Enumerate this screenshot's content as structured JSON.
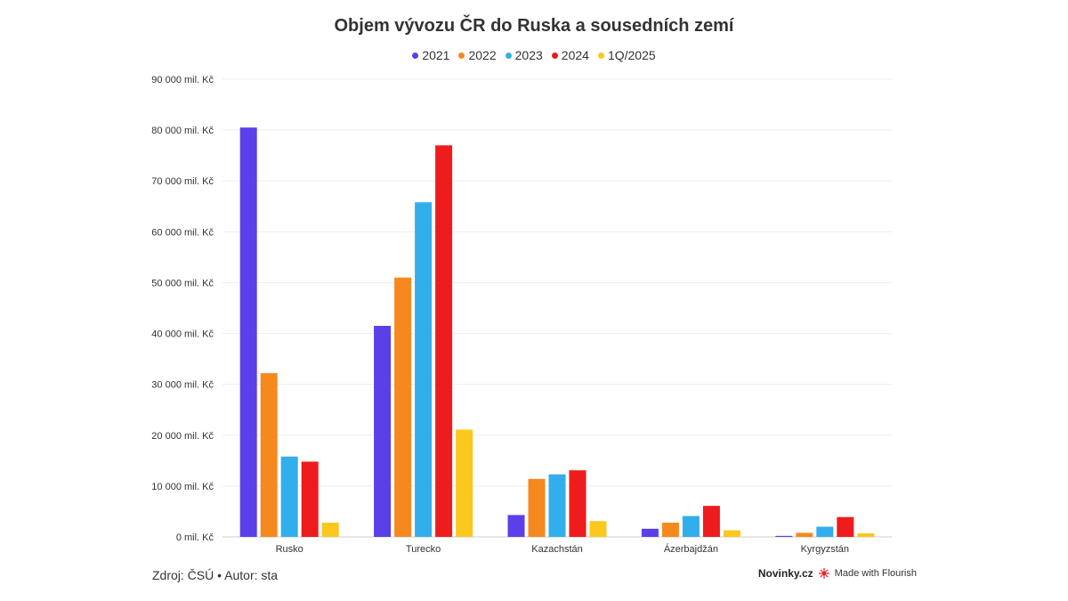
{
  "chart_data": {
    "type": "bar",
    "title": "Objem vývozu ČR do Ruska a sousedních zemí",
    "categories": [
      "Rusko",
      "Turecko",
      "Kazachstán",
      "Ázerbajdžán",
      "Kyrgyzstán"
    ],
    "series": [
      {
        "name": "2021",
        "color": "#5b3fe8",
        "values": [
          80500,
          41500,
          4300,
          1600,
          200
        ]
      },
      {
        "name": "2022",
        "color": "#f5891e",
        "values": [
          32200,
          51000,
          11400,
          2800,
          800
        ]
      },
      {
        "name": "2023",
        "color": "#33aeec",
        "values": [
          15800,
          65800,
          12300,
          4100,
          2000
        ]
      },
      {
        "name": "2024",
        "color": "#ee1c1c",
        "values": [
          14800,
          77000,
          13100,
          6100,
          3900
        ]
      },
      {
        "name": "1Q/2025",
        "color": "#fcc81e",
        "values": [
          2800,
          21100,
          3100,
          1300,
          700
        ]
      }
    ],
    "ylim": [
      0,
      90000
    ],
    "yticks": [
      {
        "value": 0,
        "label": "0 mil. Kč"
      },
      {
        "value": 10000,
        "label": "10 000 mil. Kč"
      },
      {
        "value": 20000,
        "label": "20 000 mil. Kč"
      },
      {
        "value": 30000,
        "label": "30 000 mil. Kč"
      },
      {
        "value": 40000,
        "label": "40 000 mil. Kč"
      },
      {
        "value": 50000,
        "label": "50 000 mil. Kč"
      },
      {
        "value": 60000,
        "label": "60 000 mil. Kč"
      },
      {
        "value": 70000,
        "label": "70 000 mil. Kč"
      },
      {
        "value": 80000,
        "label": "80 000 mil. Kč"
      },
      {
        "value": 90000,
        "label": "90 000 mil. Kč"
      }
    ],
    "grid": true,
    "legend": "top-center"
  },
  "footer": {
    "source": "Zdroj: ČSÚ • Autor: sta",
    "brand": "Novinky.cz",
    "flourish": "Made with Flourish",
    "flourish_icon": "flourish-logo-icon",
    "flourish_color": "#e8232b"
  }
}
